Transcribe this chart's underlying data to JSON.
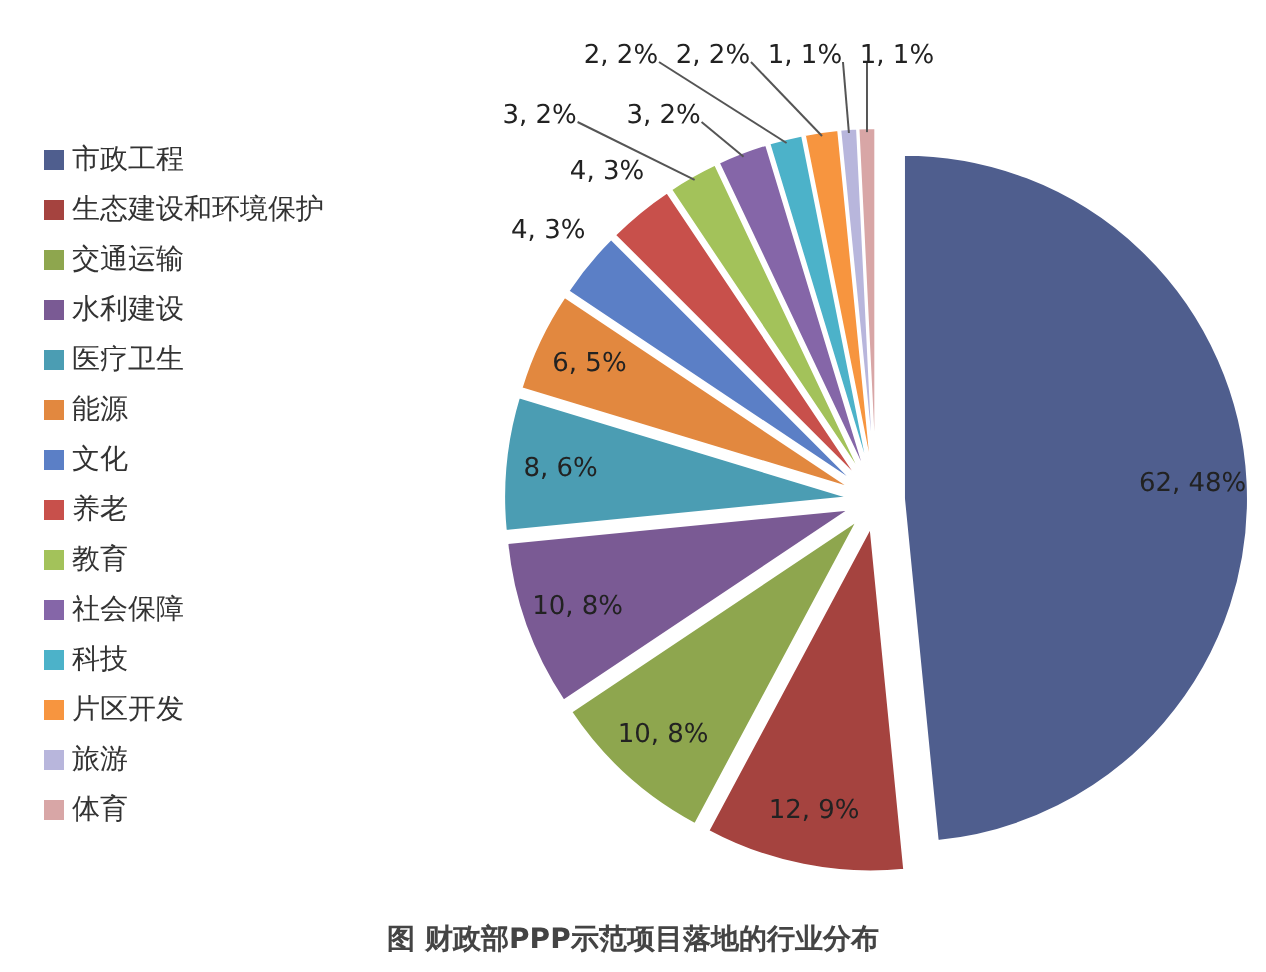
{
  "chart_data": {
    "type": "pie",
    "categories": [
      "市政工程",
      "生态建设和环境保护",
      "交通运输",
      "水利建设",
      "医疗卫生",
      "能源",
      "文化",
      "养老",
      "教育",
      "社会保障",
      "科技",
      "片区开发",
      "旅游",
      "体育"
    ],
    "values": [
      62,
      12,
      10,
      10,
      8,
      6,
      4,
      4,
      3,
      3,
      2,
      2,
      1,
      1
    ],
    "colors": [
      "#4f5e8e",
      "#a5433f",
      "#8ea64e",
      "#7a5a94",
      "#4b9db3",
      "#e2883f",
      "#5b7fc6",
      "#c8504b",
      "#a3c25a",
      "#8566a8",
      "#4cb2c9",
      "#f7953f",
      "#b8b6dc",
      "#d8a6a6"
    ],
    "value_labels": [
      "62, 48%",
      "12, 9%",
      "10, 8%",
      "10, 8%",
      "8, 6%",
      "6, 5%",
      "4, 3%",
      "4, 3%",
      "3, 2%",
      "3, 2%",
      "2, 2%",
      "2, 2%",
      "1, 1%",
      "1, 1%"
    ],
    "legend": "left",
    "annotations": [
      "图 财政部PPP示范项目落地的行业分布"
    ]
  }
}
